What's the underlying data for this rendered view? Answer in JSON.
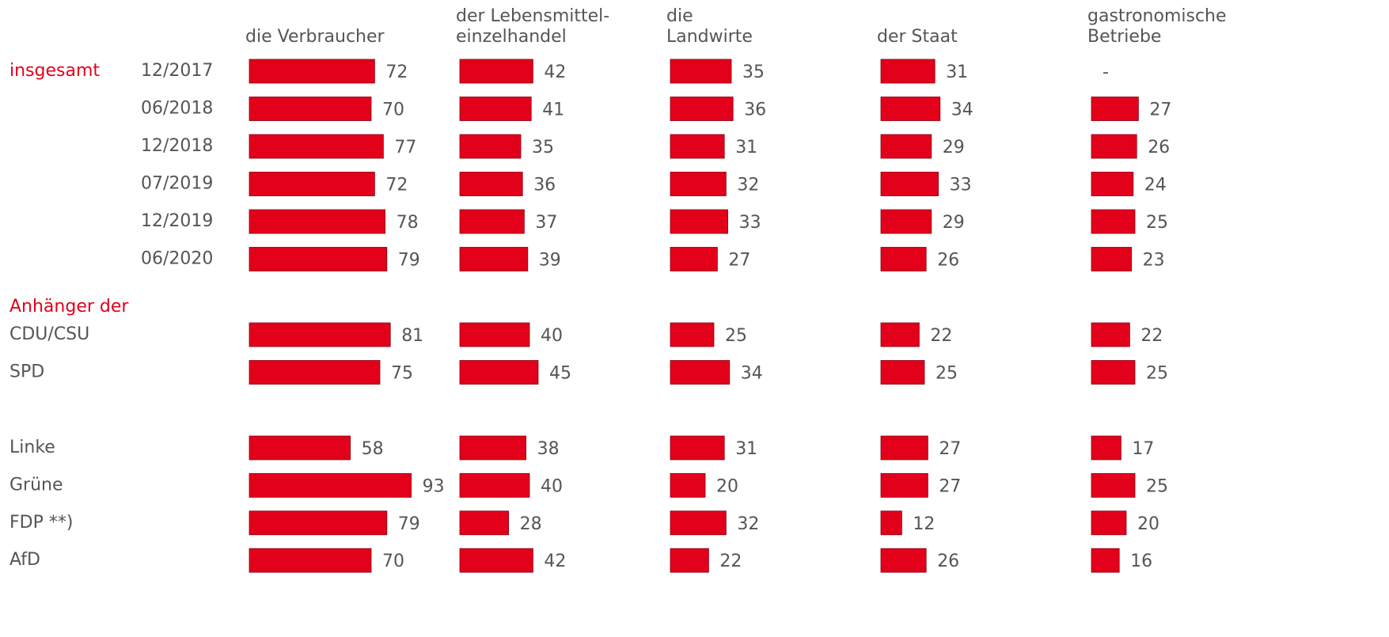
{
  "chart_data": {
    "type": "bar",
    "group_labels": [
      "insgesamt",
      "Anhänger der"
    ],
    "categories": [
      "12/2017",
      "06/2018",
      "12/2018",
      "07/2019",
      "12/2019",
      "06/2020",
      "CDU/CSU",
      "SPD",
      "Linke",
      "Grüne",
      "FDP **)",
      "AfD"
    ],
    "color": "#e2001a",
    "xlim": [
      0,
      100
    ],
    "series": [
      {
        "name": [
          "die Verbraucher"
        ],
        "values": [
          72,
          70,
          77,
          72,
          78,
          79,
          81,
          75,
          58,
          93,
          79,
          70
        ]
      },
      {
        "name": [
          "der Lebensmittel-",
          "einzelhandel"
        ],
        "values": [
          42,
          41,
          35,
          36,
          37,
          39,
          40,
          45,
          38,
          40,
          28,
          42
        ]
      },
      {
        "name": [
          "die",
          "Landwirte"
        ],
        "values": [
          35,
          36,
          31,
          32,
          33,
          27,
          25,
          34,
          31,
          20,
          32,
          22
        ]
      },
      {
        "name": [
          "der Staat"
        ],
        "values": [
          31,
          34,
          29,
          33,
          29,
          26,
          22,
          25,
          27,
          27,
          12,
          26
        ]
      },
      {
        "name": [
          "gastronomische",
          "Betriebe"
        ],
        "values": [
          null,
          27,
          26,
          24,
          25,
          23,
          22,
          25,
          17,
          25,
          20,
          16
        ],
        "value_labels": [
          "-",
          "27",
          "26",
          "24",
          "25",
          "23",
          "22",
          "25",
          "17",
          "25",
          "20",
          "16"
        ]
      }
    ]
  }
}
